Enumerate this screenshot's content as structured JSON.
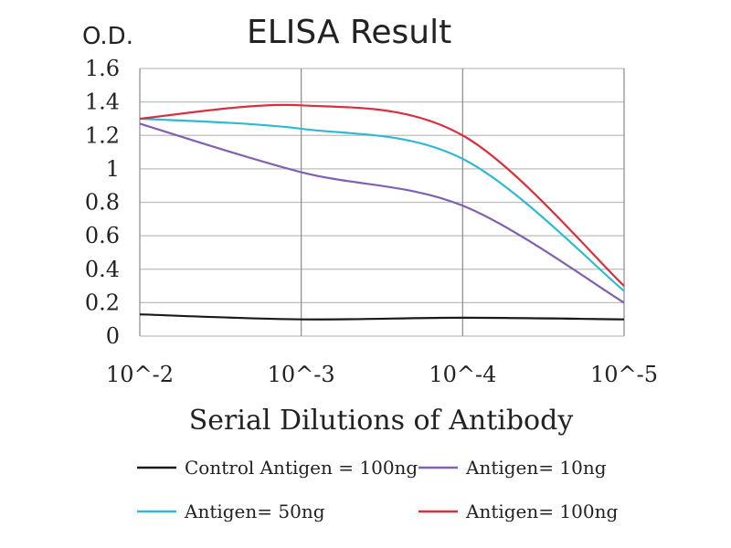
{
  "chart_data": {
    "type": "line",
    "title": "ELISA Result",
    "ylabel": "O.D.",
    "xlabel": "Serial Dilutions of Antibody",
    "x": [
      "10^-2",
      "10^-3",
      "10^-4",
      "10^-5"
    ],
    "x_log10": [
      -2,
      -3,
      -4,
      -5
    ],
    "ylim": [
      0,
      1.6
    ],
    "yticks": [
      "0",
      "0.2",
      "0.4",
      "0.6",
      "0.8",
      "1",
      "1.2",
      "1.4",
      "1.6"
    ],
    "grid": true,
    "legend_position": "bottom",
    "series": [
      {
        "name": "Control Antigen = 100ng",
        "color": "#1a1a1a",
        "values": [
          0.13,
          0.1,
          0.11,
          0.1
        ]
      },
      {
        "name": "Antigen= 10ng",
        "color": "#8060b0",
        "values": [
          1.27,
          0.98,
          0.78,
          0.2
        ]
      },
      {
        "name": "Antigen= 50ng",
        "color": "#2ebad0",
        "values": [
          1.3,
          1.24,
          1.06,
          0.27
        ]
      },
      {
        "name": "Antigen= 100ng",
        "color": "#d8303c",
        "values": [
          1.3,
          1.38,
          1.2,
          0.3
        ]
      }
    ]
  }
}
